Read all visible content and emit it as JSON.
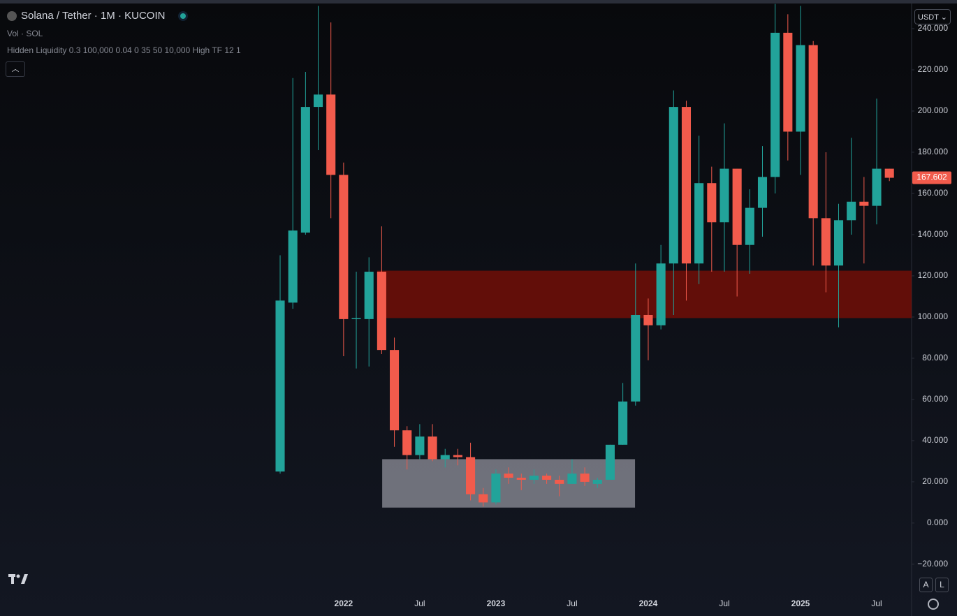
{
  "header": {
    "title": "Solana / Tether · 1M · KUCOIN",
    "indicators": [
      "Vol · SOL",
      "Hidden Liquidity 0.3 100,000 0.04 0 35 50 10,000 High TF 12 1"
    ],
    "currency": "USDT"
  },
  "buttons": [
    "A",
    "L"
  ],
  "chart_data": {
    "type": "candlestick",
    "categories": [
      null,
      null,
      null,
      null,
      null,
      "2022",
      null,
      null,
      null,
      null,
      null,
      "Jul",
      null,
      null,
      null,
      null,
      null,
      "2023",
      null,
      null,
      null,
      null,
      null,
      "Jul",
      null,
      null,
      null,
      null,
      null,
      "2024",
      null,
      null,
      null,
      null,
      null,
      "Jul",
      null,
      null,
      null,
      null,
      null,
      "2025",
      null,
      null,
      null,
      null,
      null,
      "Jul",
      null
    ],
    "open": [
      25,
      107,
      141,
      202,
      208,
      169,
      99,
      99,
      122,
      84,
      45,
      33,
      42,
      31,
      33,
      32,
      14,
      10,
      24,
      22,
      21,
      23,
      21,
      19,
      24,
      19,
      21,
      38,
      59,
      101,
      96,
      126,
      202,
      126,
      165,
      146,
      172,
      135,
      153,
      168,
      238,
      190,
      232,
      148,
      125,
      147,
      156,
      154,
      172
    ],
    "high": [
      130,
      216,
      219,
      251,
      243,
      175,
      122,
      129,
      144,
      90,
      47,
      48,
      48,
      36,
      36,
      39,
      17,
      26,
      27,
      24,
      26,
      24,
      23,
      31,
      27,
      22,
      38,
      68,
      126,
      109,
      135,
      210,
      205,
      188,
      173,
      194,
      172,
      162,
      183,
      252,
      247,
      251,
      234,
      180,
      155,
      187,
      168,
      206,
      172
    ],
    "low": [
      24,
      104,
      140,
      181,
      148,
      81,
      75,
      76,
      82,
      37,
      26,
      31,
      30,
      27,
      28,
      11,
      8,
      9,
      19,
      16,
      19,
      19,
      13,
      19,
      18,
      17,
      21,
      38,
      57,
      79,
      94,
      101,
      108,
      116,
      122,
      122,
      110,
      121,
      139,
      160,
      176,
      169,
      125,
      112,
      95,
      140,
      126,
      145,
      166
    ],
    "close": [
      108,
      142,
      202,
      208,
      169,
      99,
      99.5,
      122,
      84,
      45,
      33,
      42,
      31,
      33,
      32,
      14,
      10,
      24,
      22,
      21,
      23,
      21,
      19,
      24,
      20,
      21,
      38,
      59,
      101,
      96,
      126,
      202,
      126,
      165,
      146,
      172,
      135,
      153,
      168,
      238,
      190,
      232,
      148,
      125,
      147,
      156,
      154,
      172,
      167.6
    ],
    "up_color": "#22a39a",
    "down_color": "#f25b4c",
    "xlim": [
      -22.07,
      49.75
    ],
    "ylim": [
      -33.6,
      253.9
    ],
    "yticks": [
      {
        "value": -20,
        "label": "−20.000"
      },
      {
        "value": 0,
        "label": "0.000"
      },
      {
        "value": 20,
        "label": "20.000"
      },
      {
        "value": 40,
        "label": "40.000"
      },
      {
        "value": 60,
        "label": "60.000"
      },
      {
        "value": 80,
        "label": "80.000"
      },
      {
        "value": 100,
        "label": "100.000"
      },
      {
        "value": 120,
        "label": "120.000"
      },
      {
        "value": 140,
        "label": "140.000"
      },
      {
        "value": 160,
        "label": "160.000"
      },
      {
        "value": 180,
        "label": "180.000"
      },
      {
        "value": 200,
        "label": "200.000"
      },
      {
        "value": 220,
        "label": "220.000"
      },
      {
        "value": 240,
        "label": "240.000"
      }
    ],
    "last_price": 167.602,
    "zones": [
      {
        "top": 122.5,
        "bottom": 99.5,
        "start": 7.65,
        "end": 49.75,
        "color": "rgba(120,14,6,0.8)"
      },
      {
        "top": 31,
        "bottom": 7.5,
        "start": 8.04,
        "end": 27.96,
        "color": "rgba(190,190,200,0.55)"
      }
    ]
  }
}
